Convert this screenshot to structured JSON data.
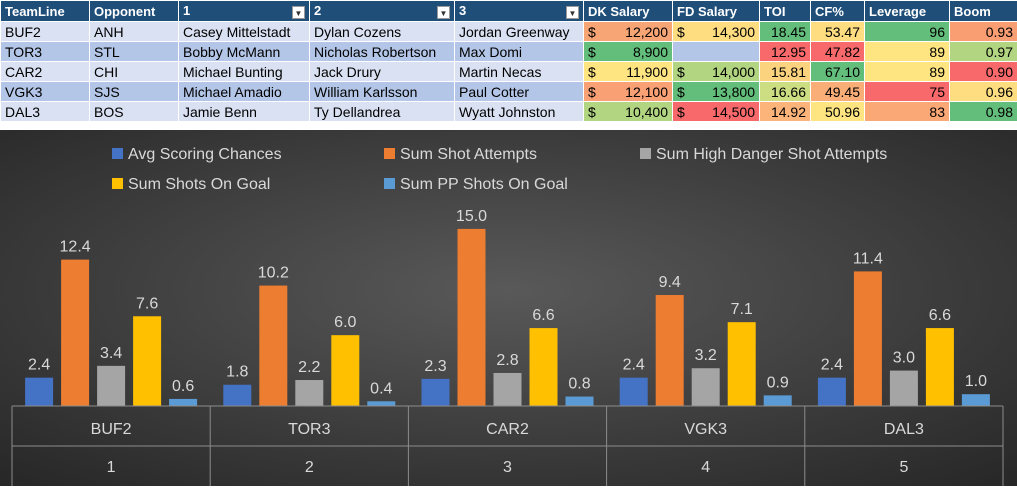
{
  "table": {
    "headers": [
      "TeamLine",
      "Opponent",
      "1",
      "2",
      "3",
      "DK Salary",
      "FD Salary",
      "TOI",
      "CF%",
      "Leverage",
      "Boom"
    ],
    "filter_headers": [
      2,
      3,
      4
    ],
    "rows": [
      {
        "teamline": "BUF2",
        "opponent": "ANH",
        "p1": "Casey Mittelstadt",
        "p2": "Dylan Cozens",
        "p3": "Jordan Greenway",
        "dk": "12,200",
        "fd": "14,300",
        "toi": "18.45",
        "cf": "53.47",
        "leverage": "96",
        "boom": "0.93",
        "colors": {
          "dk": "#f8a576",
          "fd": "#fedd81",
          "toi": "#63be7b",
          "cf": "#fedd81",
          "leverage": "#63be7b",
          "boom": "#f99d72"
        }
      },
      {
        "teamline": "TOR3",
        "opponent": "STL",
        "p1": "Bobby McMann",
        "p2": "Nicholas Robertson",
        "p3": "Max Domi",
        "dk": "8,900",
        "fd": "",
        "toi": "12.95",
        "cf": "47.82",
        "leverage": "89",
        "boom": "0.97",
        "colors": {
          "dk": "#63be7b",
          "fd": "",
          "toi": "#f8696b",
          "cf": "#f8696b",
          "leverage": "#fee582",
          "boom": "#b1d580"
        }
      },
      {
        "teamline": "CAR2",
        "opponent": "CHI",
        "p1": "Michael Bunting",
        "p2": "Jack Drury",
        "p3": "Martin Necas",
        "dk": "11,900",
        "fd": "14,000",
        "toi": "15.81",
        "cf": "67.10",
        "leverage": "89",
        "boom": "0.90",
        "colors": {
          "dk": "#fee582",
          "fd": "#b1d580",
          "toi": "#fbd37f",
          "cf": "#63be7b",
          "leverage": "#fee582",
          "boom": "#f8696b"
        }
      },
      {
        "teamline": "VGK3",
        "opponent": "SJS",
        "p1": "Michael Amadio",
        "p2": "William Karlsson",
        "p3": "Paul Cotter",
        "dk": "12,100",
        "fd": "13,800",
        "toi": "16.66",
        "cf": "49.45",
        "leverage": "75",
        "boom": "0.96",
        "colors": {
          "dk": "#f9a075",
          "fd": "#63be7b",
          "toi": "#cddd82",
          "cf": "#f9ae78",
          "leverage": "#f8696b",
          "boom": "#fedd81"
        }
      },
      {
        "teamline": "DAL3",
        "opponent": "BOS",
        "p1": "Jamie Benn",
        "p2": "Ty Dellandrea",
        "p3": "Wyatt Johnston",
        "dk": "10,400",
        "fd": "14,500",
        "toi": "14.92",
        "cf": "50.96",
        "leverage": "83",
        "boom": "0.98",
        "colors": {
          "dk": "#b1d580",
          "fd": "#f8696b",
          "toi": "#fdb47a",
          "cf": "#fee582",
          "leverage": "#fba877",
          "boom": "#63be7b"
        }
      }
    ],
    "currency_symbol": "$"
  },
  "chart_data": {
    "type": "bar",
    "categories": [
      "BUF2",
      "TOR3",
      "CAR2",
      "VGK3",
      "DAL3"
    ],
    "category_index": [
      "1",
      "2",
      "3",
      "4",
      "5"
    ],
    "series": [
      {
        "name": "Avg Scoring Chances",
        "values": [
          2.4,
          1.8,
          2.3,
          2.4,
          2.4
        ],
        "color": "#4472c4"
      },
      {
        "name": "Sum Shot Attempts",
        "values": [
          12.4,
          10.2,
          15.0,
          9.4,
          11.4
        ],
        "color": "#ed7d31"
      },
      {
        "name": "Sum High Danger Shot Attempts",
        "values": [
          3.4,
          2.2,
          2.8,
          3.2,
          3.0
        ],
        "color": "#a5a5a5"
      },
      {
        "name": "Sum Shots On Goal",
        "values": [
          7.6,
          6.0,
          6.6,
          7.1,
          6.6
        ],
        "color": "#ffc000"
      },
      {
        "name": "Sum PP Shots On Goal",
        "values": [
          0.6,
          0.4,
          0.8,
          0.9,
          1.0
        ],
        "color": "#5b9bd5"
      }
    ],
    "ylim": [
      0,
      15.5
    ],
    "legend": "top",
    "title": "",
    "xlabel": "",
    "ylabel": ""
  },
  "colors": {
    "chart_background": "#404040",
    "header_bg": "#1f4e79"
  }
}
